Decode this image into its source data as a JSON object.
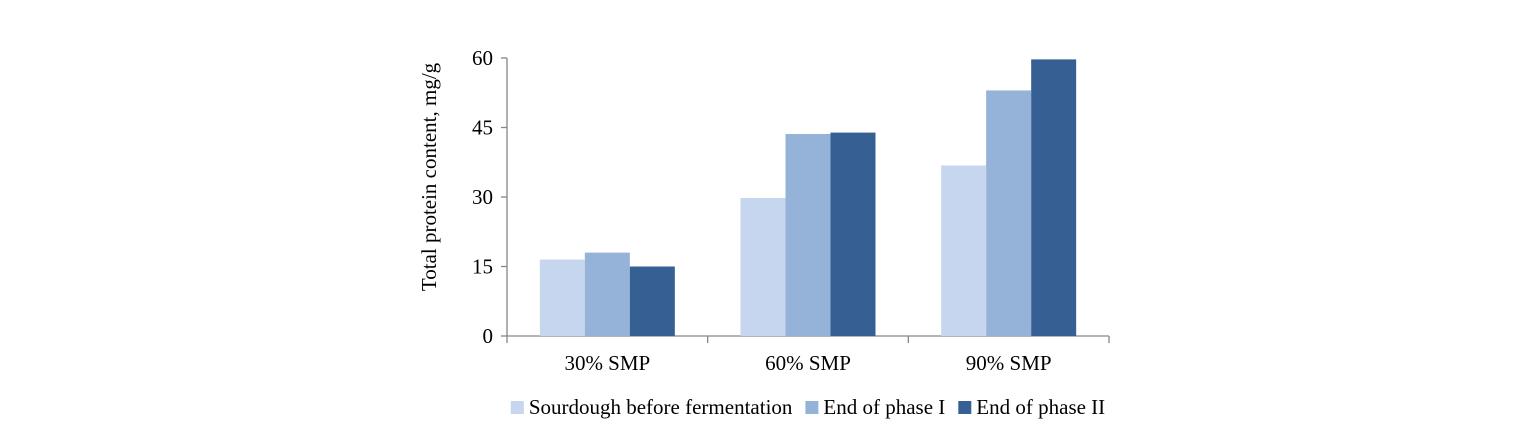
{
  "chart_data": {
    "type": "bar",
    "title": "",
    "xlabel": "",
    "ylabel": "Total protein content, mg/g",
    "ylim": [
      0,
      60
    ],
    "yticks": [
      0,
      15,
      30,
      45,
      60
    ],
    "categories": [
      "30% SMP",
      "60% SMP",
      "90% SMP"
    ],
    "series": [
      {
        "name": "Sourdough before fermentation",
        "color": "#c6d6ee",
        "values": [
          16.5,
          29.8,
          36.8
        ]
      },
      {
        "name": "End of phase I",
        "color": "#95b2d8",
        "values": [
          18.0,
          43.6,
          53.0
        ]
      },
      {
        "name": "End of phase II",
        "color": "#365f93",
        "values": [
          15.0,
          43.9,
          59.7
        ]
      }
    ],
    "grid": false,
    "legend_position": "bottom"
  }
}
